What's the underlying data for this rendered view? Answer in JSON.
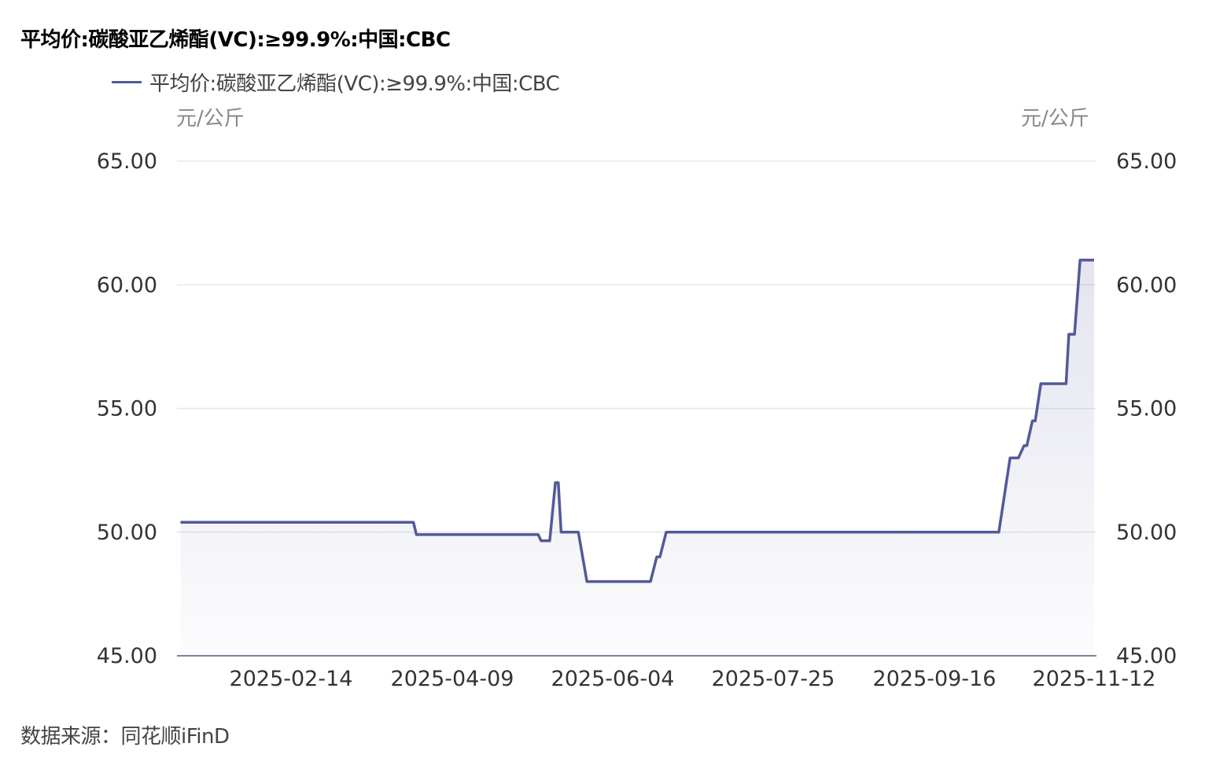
{
  "chart_data": {
    "type": "area",
    "title": "平均价:碳酸亚乙烯酯(VC):≥99.9%:中国:CBC",
    "ylabel_left": "元/公斤",
    "ylabel_right": "元/公斤",
    "ylim": [
      45,
      65
    ],
    "yticks": [
      "65.00",
      "60.00",
      "55.00",
      "50.00",
      "45.00"
    ],
    "xticks": [
      "2025-02-14",
      "2025-04-09",
      "2025-06-04",
      "2025-07-25",
      "2025-09-16",
      "2025-11-12"
    ],
    "grid": true,
    "legend_position": "top-left",
    "color": "#525a98",
    "series": [
      {
        "name": "平均价:碳酸亚乙烯酯(VC):≥99.9%:中国:CBC",
        "points": [
          [
            "2025-01-08",
            50.4
          ],
          [
            "2025-03-27",
            50.4
          ],
          [
            "2025-03-28",
            49.9
          ],
          [
            "2025-05-09",
            49.9
          ],
          [
            "2025-05-10",
            49.65
          ],
          [
            "2025-05-13",
            49.65
          ],
          [
            "2025-05-15",
            52.0
          ],
          [
            "2025-05-16",
            52.0
          ],
          [
            "2025-05-17",
            50.0
          ],
          [
            "2025-05-23",
            50.0
          ],
          [
            "2025-05-26",
            48.0
          ],
          [
            "2025-06-16",
            48.0
          ],
          [
            "2025-06-18",
            49.0
          ],
          [
            "2025-06-19",
            49.0
          ],
          [
            "2025-06-21",
            50.0
          ],
          [
            "2025-10-09",
            50.0
          ],
          [
            "2025-10-13",
            53.0
          ],
          [
            "2025-10-16",
            53.0
          ],
          [
            "2025-10-18",
            53.5
          ],
          [
            "2025-10-19",
            53.5
          ],
          [
            "2025-10-21",
            54.5
          ],
          [
            "2025-10-22",
            54.5
          ],
          [
            "2025-10-24",
            56.0
          ],
          [
            "2025-11-02",
            56.0
          ],
          [
            "2025-11-03",
            58.0
          ],
          [
            "2025-11-05",
            58.0
          ],
          [
            "2025-11-07",
            61.0
          ],
          [
            "2025-11-12",
            61.0
          ]
        ]
      }
    ]
  },
  "source": "数据来源：同花顺iFinD"
}
